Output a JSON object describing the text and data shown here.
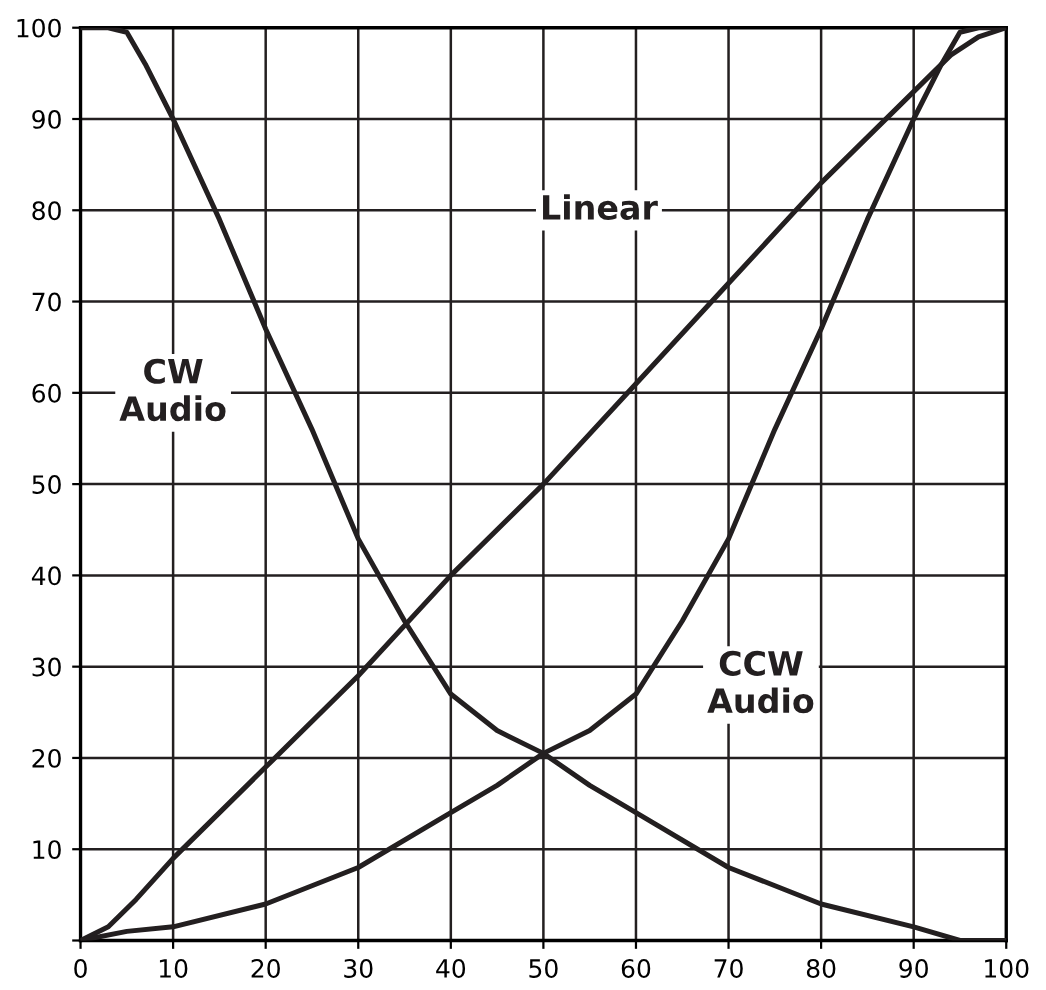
{
  "chart_data": {
    "type": "line",
    "series": [
      {
        "name": "Linear",
        "color": "#231f20",
        "x": [
          0,
          3,
          6,
          10,
          20,
          30,
          40,
          50,
          60,
          70,
          80,
          90,
          94,
          97,
          100
        ],
        "values": [
          0,
          1.5,
          4.5,
          9,
          19,
          29,
          40,
          50,
          61,
          72,
          83,
          93,
          97,
          99,
          100
        ]
      },
      {
        "name": "CW\nAudio",
        "color": "#231f20",
        "x": [
          0,
          3,
          5,
          7,
          10,
          15,
          20,
          25,
          30,
          35,
          40,
          45,
          50,
          55,
          60,
          70,
          80,
          90,
          95,
          100
        ],
        "values": [
          100,
          100,
          99.5,
          96,
          90,
          79,
          67,
          56,
          44,
          35,
          27,
          23,
          20.5,
          17,
          14,
          8,
          4,
          1.5,
          0,
          0
        ]
      },
      {
        "name": "CCW\nAudio",
        "color": "#231f20",
        "x": [
          0,
          5,
          10,
          20,
          30,
          40,
          45,
          50,
          55,
          60,
          65,
          70,
          75,
          80,
          85,
          90,
          93,
          95,
          97,
          100
        ],
        "values": [
          0,
          1,
          1.5,
          4,
          8,
          14,
          17,
          20.5,
          23,
          27,
          35,
          44,
          56,
          67,
          79,
          90,
          96,
          99.5,
          100,
          100
        ]
      }
    ],
    "xlim": [
      0,
      100
    ],
    "ylim": [
      0,
      100
    ],
    "xticks": [
      0,
      10,
      20,
      30,
      40,
      50,
      60,
      70,
      80,
      90,
      100
    ],
    "yticks": [
      {
        "value": 0,
        "label": null
      },
      10,
      20,
      30,
      40,
      50,
      60,
      70,
      80,
      90,
      100
    ],
    "grid": true,
    "legend": false,
    "marker": "none",
    "line_style": "solid"
  }
}
